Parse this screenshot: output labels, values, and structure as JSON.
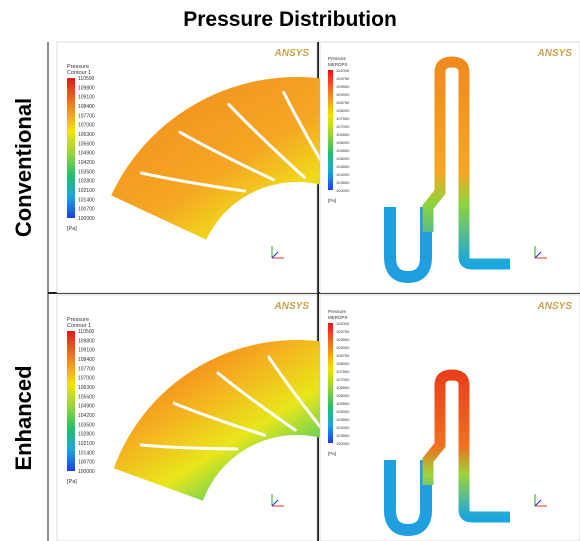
{
  "title": "Pressure Distribution",
  "rows": [
    {
      "label": "Conventional",
      "panels": [
        {
          "brand": "ANSYS",
          "legend_title": "Pressure",
          "legend_subtitle": "Contour 1",
          "legend_ticks": [
            "110500",
            "109800",
            "109100",
            "108400",
            "107700",
            "107000",
            "106300",
            "105600",
            "104900",
            "104200",
            "103500",
            "102800",
            "102100",
            "101400",
            "100700",
            "100000"
          ],
          "unit": "[Pa]"
        },
        {
          "brand": "ANSYS",
          "legend_title": "Pressure",
          "legend_subtitle": "MEROPS",
          "legend_ticks": [
            "110000",
            "109750",
            "109500",
            "109000",
            "108750",
            "108000",
            "107500",
            "107000",
            "106500",
            "106000",
            "105500",
            "105000",
            "104500",
            "104000",
            "103500",
            "100000"
          ],
          "unit": "[Pa]"
        }
      ]
    },
    {
      "label": "Enhanced",
      "panels": [
        {
          "brand": "ANSYS",
          "legend_title": "Pressure",
          "legend_subtitle": "Contour 1",
          "legend_ticks": [
            "110500",
            "109800",
            "109100",
            "108400",
            "107700",
            "107000",
            "106300",
            "105600",
            "104900",
            "104200",
            "103500",
            "102800",
            "102100",
            "101400",
            "100700",
            "100000"
          ],
          "unit": "[Pa]"
        },
        {
          "brand": "ANSYS",
          "legend_title": "Pressure",
          "legend_subtitle": "MEROPS",
          "legend_ticks": [
            "110000",
            "109750",
            "109500",
            "109000",
            "108750",
            "108000",
            "107500",
            "107000",
            "106500",
            "106000",
            "105500",
            "105000",
            "104500",
            "104000",
            "103500",
            "100000"
          ],
          "unit": "[Pa]"
        }
      ]
    }
  ]
}
